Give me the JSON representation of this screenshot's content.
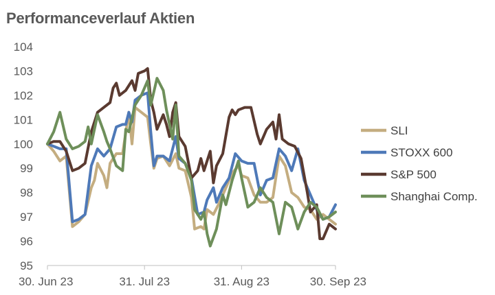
{
  "chart_data": {
    "type": "line",
    "title": "Performanceverlauf Aktien",
    "xlabel": "",
    "ylabel": "",
    "ylim": [
      95,
      104
    ],
    "yticks": [
      95,
      96,
      97,
      98,
      99,
      100,
      101,
      102,
      103,
      104
    ],
    "xlim": [
      "2023-06-30",
      "2023-09-30"
    ],
    "xticks": [
      {
        "date": "2023-06-30",
        "label": "30. Jun 23"
      },
      {
        "date": "2023-07-31",
        "label": "31. Jul 23"
      },
      {
        "date": "2023-08-31",
        "label": "31. Aug 23"
      },
      {
        "date": "2023-09-30",
        "label": "30. Sep 23"
      }
    ],
    "grid": "horizontal",
    "legend_position": "right",
    "series": [
      {
        "name": "SLI",
        "color": "#C4AD80",
        "points": [
          [
            "2023-06-30",
            100
          ],
          [
            "2023-07-02",
            99.7
          ],
          [
            "2023-07-04",
            99.3
          ],
          [
            "2023-07-06",
            99.5
          ],
          [
            "2023-07-08",
            96.6
          ],
          [
            "2023-07-10",
            96.8
          ],
          [
            "2023-07-12",
            97.1
          ],
          [
            "2023-07-14",
            98.2
          ],
          [
            "2023-07-15",
            98.5
          ],
          [
            "2023-07-16",
            99.2
          ],
          [
            "2023-07-18",
            98.7
          ],
          [
            "2023-07-19",
            98.2
          ],
          [
            "2023-07-20",
            99.2
          ],
          [
            "2023-07-22",
            99.6
          ],
          [
            "2023-07-24",
            99.6
          ],
          [
            "2023-07-26",
            101.3
          ],
          [
            "2023-07-27",
            100
          ],
          [
            "2023-07-28",
            101.5
          ],
          [
            "2023-07-30",
            101.3
          ],
          [
            "2023-08-01",
            101.1
          ],
          [
            "2023-08-02",
            100
          ],
          [
            "2023-08-03",
            99
          ],
          [
            "2023-08-04",
            99.4
          ],
          [
            "2023-08-06",
            99.5
          ],
          [
            "2023-08-08",
            99.1
          ],
          [
            "2023-08-10",
            99.6
          ],
          [
            "2023-08-11",
            99
          ],
          [
            "2023-08-13",
            98.9
          ],
          [
            "2023-08-15",
            97.8
          ],
          [
            "2023-08-16",
            96.5
          ],
          [
            "2023-08-18",
            96.6
          ],
          [
            "2023-08-19",
            96.5
          ],
          [
            "2023-08-20",
            97.3
          ],
          [
            "2023-08-22",
            97.1
          ],
          [
            "2023-08-24",
            97.6
          ],
          [
            "2023-08-26",
            98.2
          ],
          [
            "2023-08-28",
            98.8
          ],
          [
            "2023-08-30",
            99.1
          ],
          [
            "2023-08-31",
            98.7
          ],
          [
            "2023-09-02",
            98.6
          ],
          [
            "2023-09-04",
            97.9
          ],
          [
            "2023-09-06",
            97.6
          ],
          [
            "2023-09-08",
            97.6
          ],
          [
            "2023-09-10",
            97.8
          ],
          [
            "2023-09-12",
            99.5
          ],
          [
            "2023-09-14",
            99.1
          ],
          [
            "2023-09-16",
            98
          ],
          [
            "2023-09-18",
            97.8
          ],
          [
            "2023-09-20",
            97.4
          ],
          [
            "2023-09-22",
            97.3
          ],
          [
            "2023-09-24",
            96.9
          ],
          [
            "2023-09-26",
            97.1
          ],
          [
            "2023-09-28",
            96.9
          ],
          [
            "2023-09-30",
            96.7
          ]
        ]
      },
      {
        "name": "STOXX 600",
        "color": "#4E79B8",
        "points": [
          [
            "2023-06-30",
            100
          ],
          [
            "2023-07-02",
            99.9
          ],
          [
            "2023-07-04",
            99.8
          ],
          [
            "2023-07-06",
            99.8
          ],
          [
            "2023-07-08",
            96.8
          ],
          [
            "2023-07-10",
            96.9
          ],
          [
            "2023-07-12",
            97.1
          ],
          [
            "2023-07-14",
            99.1
          ],
          [
            "2023-07-16",
            99.8
          ],
          [
            "2023-07-18",
            99.5
          ],
          [
            "2023-07-20",
            99.8
          ],
          [
            "2023-07-22",
            100.7
          ],
          [
            "2023-07-24",
            100.8
          ],
          [
            "2023-07-25",
            100.8
          ],
          [
            "2023-07-26",
            101.3
          ],
          [
            "2023-07-27",
            100.9
          ],
          [
            "2023-07-28",
            101.8
          ],
          [
            "2023-07-30",
            102
          ],
          [
            "2023-08-01",
            102.1
          ],
          [
            "2023-08-02",
            100.5
          ],
          [
            "2023-08-03",
            99.1
          ],
          [
            "2023-08-04",
            99.5
          ],
          [
            "2023-08-06",
            99.5
          ],
          [
            "2023-08-08",
            99.3
          ],
          [
            "2023-08-10",
            100.3
          ],
          [
            "2023-08-11",
            99.4
          ],
          [
            "2023-08-13",
            99.2
          ],
          [
            "2023-08-15",
            98.6
          ],
          [
            "2023-08-17",
            97.1
          ],
          [
            "2023-08-19",
            97.2
          ],
          [
            "2023-08-20",
            97.7
          ],
          [
            "2023-08-22",
            98.2
          ],
          [
            "2023-08-23",
            97.6
          ],
          [
            "2023-08-25",
            98.2
          ],
          [
            "2023-08-27",
            98.6
          ],
          [
            "2023-08-29",
            99.6
          ],
          [
            "2023-08-31",
            99.3
          ],
          [
            "2023-09-02",
            99.2
          ],
          [
            "2023-09-04",
            99.2
          ],
          [
            "2023-09-06",
            97.9
          ],
          [
            "2023-09-08",
            98.5
          ],
          [
            "2023-09-10",
            98.6
          ],
          [
            "2023-09-12",
            99.8
          ],
          [
            "2023-09-14",
            99.5
          ],
          [
            "2023-09-16",
            98.9
          ],
          [
            "2023-09-18",
            99.8
          ],
          [
            "2023-09-20",
            98.5
          ],
          [
            "2023-09-22",
            97.9
          ],
          [
            "2023-09-24",
            97.3
          ],
          [
            "2023-09-26",
            96.9
          ],
          [
            "2023-09-28",
            97
          ],
          [
            "2023-09-30",
            97.5
          ]
        ]
      },
      {
        "name": "S&P 500",
        "color": "#5A3A30",
        "points": [
          [
            "2023-06-30",
            100
          ],
          [
            "2023-07-02",
            100.1
          ],
          [
            "2023-07-04",
            100.1
          ],
          [
            "2023-07-06",
            99.7
          ],
          [
            "2023-07-08",
            98.9
          ],
          [
            "2023-07-10",
            99
          ],
          [
            "2023-07-12",
            99.2
          ],
          [
            "2023-07-14",
            100.5
          ],
          [
            "2023-07-16",
            101.3
          ],
          [
            "2023-07-18",
            101.5
          ],
          [
            "2023-07-20",
            101.7
          ],
          [
            "2023-07-21",
            102.3
          ],
          [
            "2023-07-22",
            102.5
          ],
          [
            "2023-07-23",
            102
          ],
          [
            "2023-07-25",
            102.2
          ],
          [
            "2023-07-27",
            102.6
          ],
          [
            "2023-07-28",
            102.2
          ],
          [
            "2023-07-29",
            102.9
          ],
          [
            "2023-07-31",
            103
          ],
          [
            "2023-08-01",
            103.1
          ],
          [
            "2023-08-02",
            101.8
          ],
          [
            "2023-08-03",
            101.3
          ],
          [
            "2023-08-04",
            100.6
          ],
          [
            "2023-08-06",
            101.2
          ],
          [
            "2023-08-07",
            100.8
          ],
          [
            "2023-08-08",
            100.3
          ],
          [
            "2023-08-09",
            101.3
          ],
          [
            "2023-08-10",
            101.7
          ],
          [
            "2023-08-11",
            100.3
          ],
          [
            "2023-08-13",
            99.9
          ],
          [
            "2023-08-15",
            98.6
          ],
          [
            "2023-08-17",
            98.9
          ],
          [
            "2023-08-18",
            99.4
          ],
          [
            "2023-08-19",
            98.9
          ],
          [
            "2023-08-21",
            99.7
          ],
          [
            "2023-08-22",
            98.4
          ],
          [
            "2023-08-23",
            99.1
          ],
          [
            "2023-08-25",
            99.6
          ],
          [
            "2023-08-27",
            101.1
          ],
          [
            "2023-08-28",
            101.4
          ],
          [
            "2023-08-29",
            101.2
          ],
          [
            "2023-08-30",
            101.4
          ],
          [
            "2023-09-01",
            101.5
          ],
          [
            "2023-09-03",
            101.5
          ],
          [
            "2023-09-05",
            100.4
          ],
          [
            "2023-09-06",
            100
          ],
          [
            "2023-09-08",
            100.6
          ],
          [
            "2023-09-10",
            100.9
          ],
          [
            "2023-09-11",
            100.2
          ],
          [
            "2023-09-12",
            101.2
          ],
          [
            "2023-09-13",
            100.2
          ],
          [
            "2023-09-15",
            100
          ],
          [
            "2023-09-17",
            99.9
          ],
          [
            "2023-09-19",
            99.4
          ],
          [
            "2023-09-21",
            98
          ],
          [
            "2023-09-22",
            97.2
          ],
          [
            "2023-09-24",
            97.5
          ],
          [
            "2023-09-25",
            96.1
          ],
          [
            "2023-09-26",
            96.1
          ],
          [
            "2023-09-28",
            96.7
          ],
          [
            "2023-09-30",
            96.5
          ]
        ]
      },
      {
        "name": "Shanghai Comp.",
        "color": "#6E8F5A",
        "points": [
          [
            "2023-06-30",
            100
          ],
          [
            "2023-07-02",
            100.5
          ],
          [
            "2023-07-04",
            101.3
          ],
          [
            "2023-07-06",
            100.2
          ],
          [
            "2023-07-08",
            99.8
          ],
          [
            "2023-07-10",
            99.9
          ],
          [
            "2023-07-12",
            100.1
          ],
          [
            "2023-07-13",
            100.7
          ],
          [
            "2023-07-14",
            100
          ],
          [
            "2023-07-16",
            101.2
          ],
          [
            "2023-07-18",
            100.5
          ],
          [
            "2023-07-19",
            100.1
          ],
          [
            "2023-07-20",
            99.8
          ],
          [
            "2023-07-22",
            99.1
          ],
          [
            "2023-07-24",
            98.9
          ],
          [
            "2023-07-25",
            100.6
          ],
          [
            "2023-07-26",
            100.5
          ],
          [
            "2023-07-28",
            101.6
          ],
          [
            "2023-07-30",
            102
          ],
          [
            "2023-08-01",
            102.6
          ],
          [
            "2023-08-02",
            101.6
          ],
          [
            "2023-08-04",
            102.7
          ],
          [
            "2023-08-06",
            102.2
          ],
          [
            "2023-08-07",
            101.4
          ],
          [
            "2023-08-09",
            100.2
          ],
          [
            "2023-08-10",
            101.6
          ],
          [
            "2023-08-11",
            99.5
          ],
          [
            "2023-08-13",
            99.2
          ],
          [
            "2023-08-15",
            98.5
          ],
          [
            "2023-08-16",
            97.3
          ],
          [
            "2023-08-18",
            96.9
          ],
          [
            "2023-08-19",
            97.2
          ],
          [
            "2023-08-20",
            96.3
          ],
          [
            "2023-08-21",
            95.8
          ],
          [
            "2023-08-23",
            96.5
          ],
          [
            "2023-08-25",
            97.9
          ],
          [
            "2023-08-26",
            97.5
          ],
          [
            "2023-08-28",
            98.5
          ],
          [
            "2023-08-30",
            99.3
          ],
          [
            "2023-08-31",
            98.6
          ],
          [
            "2023-09-02",
            97.4
          ],
          [
            "2023-09-04",
            97.6
          ],
          [
            "2023-09-06",
            98.2
          ],
          [
            "2023-09-08",
            97.8
          ],
          [
            "2023-09-10",
            97.6
          ],
          [
            "2023-09-12",
            96.3
          ],
          [
            "2023-09-14",
            97.6
          ],
          [
            "2023-09-16",
            97.4
          ],
          [
            "2023-09-18",
            96.5
          ],
          [
            "2023-09-20",
            97.2
          ],
          [
            "2023-09-22",
            97.6
          ],
          [
            "2023-09-24",
            97.4
          ],
          [
            "2023-09-26",
            96.9
          ],
          [
            "2023-09-28",
            97
          ],
          [
            "2023-09-30",
            97.2
          ]
        ]
      }
    ]
  }
}
